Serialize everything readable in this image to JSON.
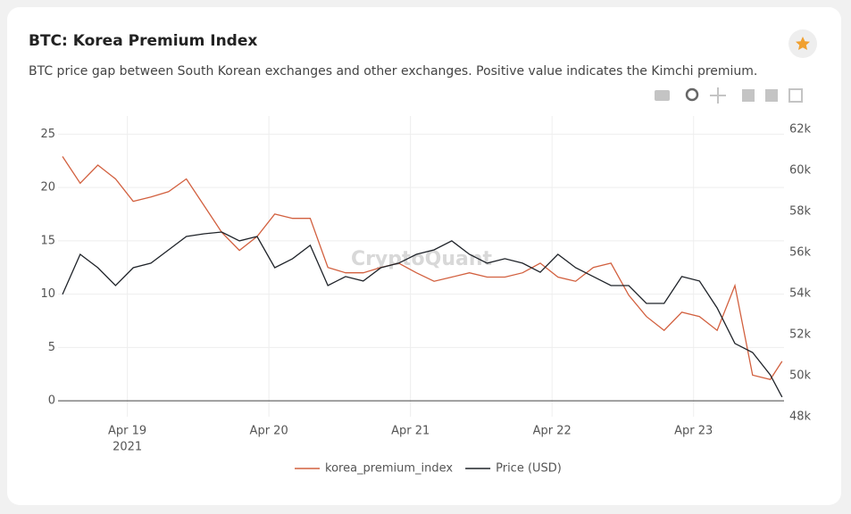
{
  "chart_data": {
    "type": "line",
    "title": "BTC: Korea Premium Index",
    "subtitle": "BTC price gap between South Korean exchanges and other exchanges. Positive value indicates the Kimchi premium.",
    "watermark": "CryptoQuant",
    "x": [
      "2021-04-18T13:00",
      "2021-04-18T16:00",
      "2021-04-18T19:00",
      "2021-04-18T22:00",
      "2021-04-19T01:00",
      "2021-04-19T04:00",
      "2021-04-19T07:00",
      "2021-04-19T10:00",
      "2021-04-19T13:00",
      "2021-04-19T16:00",
      "2021-04-19T19:00",
      "2021-04-19T22:00",
      "2021-04-20T01:00",
      "2021-04-20T04:00",
      "2021-04-20T07:00",
      "2021-04-20T10:00",
      "2021-04-20T13:00",
      "2021-04-20T16:00",
      "2021-04-20T19:00",
      "2021-04-20T22:00",
      "2021-04-21T01:00",
      "2021-04-21T04:00",
      "2021-04-21T07:00",
      "2021-04-21T10:00",
      "2021-04-21T13:00",
      "2021-04-21T16:00",
      "2021-04-21T19:00",
      "2021-04-21T22:00",
      "2021-04-22T01:00",
      "2021-04-22T04:00",
      "2021-04-22T07:00",
      "2021-04-22T10:00",
      "2021-04-22T13:00",
      "2021-04-22T16:00",
      "2021-04-22T19:00",
      "2021-04-22T22:00",
      "2021-04-23T01:00",
      "2021-04-23T04:00",
      "2021-04-23T07:00",
      "2021-04-23T10:00",
      "2021-04-23T13:00",
      "2021-04-23T15:00"
    ],
    "series": [
      {
        "name": "korea_premium_index",
        "color": "#d2603f",
        "axis": "y",
        "values": [
          22.9,
          20.4,
          22.1,
          20.8,
          18.7,
          19.1,
          19.6,
          20.8,
          18.3,
          15.8,
          14.1,
          15.4,
          17.5,
          17.1,
          17.1,
          12.5,
          12.0,
          12.0,
          12.5,
          12.9,
          12.0,
          11.2,
          11.6,
          12.0,
          11.6,
          11.6,
          12.0,
          12.9,
          11.6,
          11.2,
          12.5,
          12.9,
          9.9,
          7.9,
          6.6,
          8.3,
          7.9,
          6.6,
          10.8,
          2.4,
          2.0,
          3.7
        ]
      },
      {
        "name": "Price (USD)",
        "color": "#1f2329",
        "axis": "y2",
        "values": [
          53960,
          55910,
          55260,
          54390,
          55260,
          55480,
          56130,
          56780,
          56910,
          57000,
          56570,
          56780,
          55260,
          55700,
          56350,
          54390,
          54830,
          54610,
          55260,
          55480,
          55910,
          56130,
          56570,
          55910,
          55480,
          55700,
          55480,
          55040,
          55910,
          55260,
          54830,
          54390,
          54390,
          53520,
          53520,
          54830,
          54610,
          53300,
          51570,
          51130,
          50040,
          48960
        ]
      }
    ],
    "xlim": [
      "2021-04-18T12:15",
      "2021-04-23T15:20"
    ],
    "xticks": [
      {
        "value": "2021-04-19T00:00",
        "label": "Apr 19"
      },
      {
        "value": "2021-04-20T00:00",
        "label": "Apr 20"
      },
      {
        "value": "2021-04-21T00:00",
        "label": "Apr 21"
      },
      {
        "value": "2021-04-22T00:00",
        "label": "Apr 22"
      },
      {
        "value": "2021-04-23T00:00",
        "label": "Apr 23"
      }
    ],
    "x_year_label": "2021",
    "ylim": [
      -1.5,
      26.7
    ],
    "yticks": [
      0,
      5,
      10,
      15,
      20,
      25
    ],
    "y2lim": [
      48000,
      62650
    ],
    "y2ticks": [
      {
        "value": 48000,
        "label": "48k"
      },
      {
        "value": 50000,
        "label": "50k"
      },
      {
        "value": 52000,
        "label": "52k"
      },
      {
        "value": 54000,
        "label": "54k"
      },
      {
        "value": 56000,
        "label": "56k"
      },
      {
        "value": 58000,
        "label": "58k"
      },
      {
        "value": 60000,
        "label": "60k"
      },
      {
        "value": 62000,
        "label": "62k"
      }
    ],
    "grid": true
  }
}
